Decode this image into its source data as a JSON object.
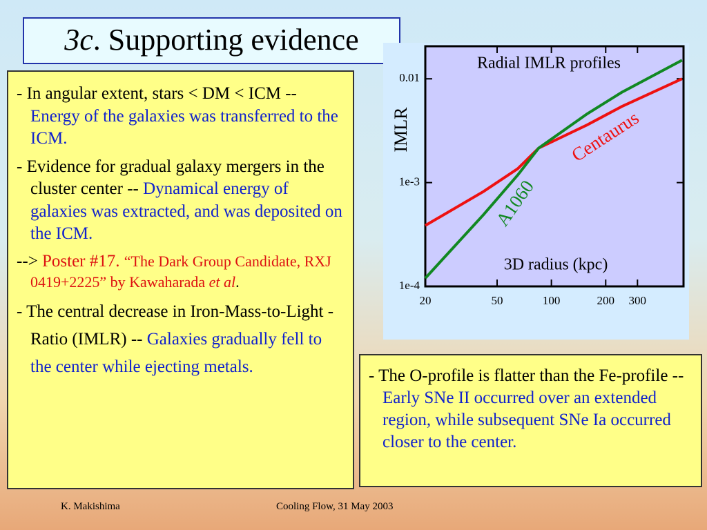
{
  "title": {
    "italic": "3c",
    "rest": ". Supporting evidence"
  },
  "left_box": {
    "items": [
      [
        "- In angular extent, stars < DM < ICM -- ",
        "Energy of the galaxies was transferred to the ICM."
      ],
      [
        "- Evidence for gradual galaxy mergers in the cluster center -- ",
        "Dynamical energy of galaxies was extracted, and was deposited on the ICM."
      ],
      [
        "--> ",
        "Poster #17. ",
        "“The Dark Group Candidate, RXJ 0419+2225” by Kawaharada ",
        "et al",
        "."
      ],
      [
        "- The central decrease in Iron-Mass-to-Light -Ratio (IMLR) -- ",
        "Galaxies gradually fell to the center while ejecting metals."
      ]
    ]
  },
  "right_box": {
    "items": [
      [
        "- The O-profile is flatter than the Fe-profile -- ",
        "Early SNe II occurred over an extended region, while subsequent SNe Ia occurred closer to the center."
      ]
    ]
  },
  "footer": {
    "author": "K. Makishima",
    "event": "Cooling Flow, 31 May 2003"
  },
  "chart_data": {
    "type": "line",
    "title": "Radial IMLR profiles",
    "x_label": "3D radius (kpc)",
    "y_label": "IMLR",
    "x": [
      20,
      42,
      65,
      85,
      158,
      245,
      530
    ],
    "series": [
      {
        "name": "Centaurus",
        "color": "#ee1111",
        "values": [
          0.000386,
          0.00082,
          0.00136,
          0.00215,
          0.0036,
          0.0054,
          0.01
        ]
      },
      {
        "name": "A1060",
        "color": "#118822",
        "values": [
          0.00012,
          0.00049,
          0.00118,
          0.00215,
          0.0046,
          0.0074,
          0.0151
        ]
      }
    ],
    "xlog": true,
    "ylog": true,
    "xlim": [
      20,
      540
    ],
    "ylim": [
      0.0001,
      0.0206
    ],
    "xticks": [
      20,
      50,
      100,
      200,
      300
    ],
    "yticks": [
      {
        "value": 0.0001,
        "label": "1e-4"
      },
      {
        "value": 0.001,
        "label": "1e-3"
      },
      0.01
    ],
    "grid": false
  }
}
